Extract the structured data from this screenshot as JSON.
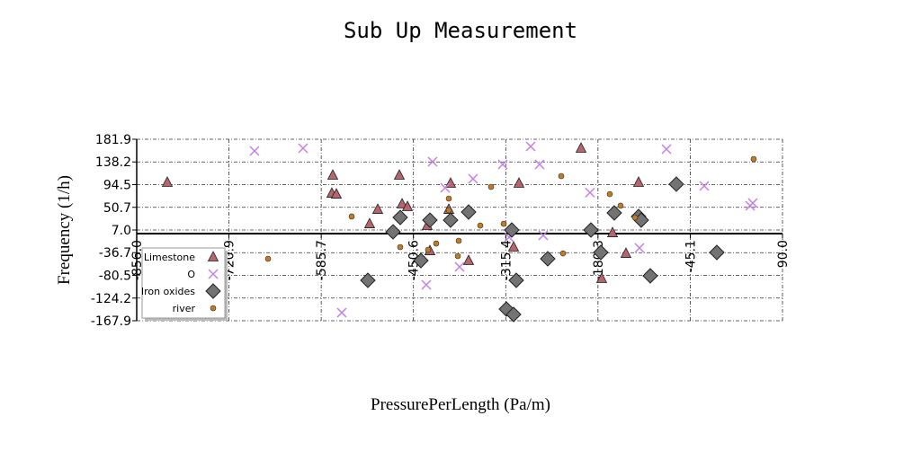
{
  "chart_data": {
    "type": "scatter",
    "title": "Sub Up Measurement",
    "xlabel": "PressurePerLength (Pa/m)",
    "ylabel": "Frequency (1/h)",
    "xlim": [
      -856.0,
      90.0
    ],
    "xticks": [
      {
        "value": -856,
        "label": "-856.0"
      },
      -720.9,
      -585.7,
      -450.6,
      -315.4,
      -180.3,
      -45.1,
      {
        "value": 90,
        "label": "90.0"
      }
    ],
    "ylim": [
      -167.9,
      181.9
    ],
    "yticks": [
      181.9,
      138.2,
      94.5,
      50.7,
      {
        "value": 7,
        "label": "7.0"
      },
      -36.7,
      -80.5,
      -124.2,
      -167.9
    ],
    "grid": true,
    "legend": "lower left",
    "series": [
      {
        "name": "Limestone",
        "color": "#b5656b",
        "marker": "triangle",
        "x": [
          -811.2,
          -568.8,
          -570.1,
          -563.5,
          -502.9,
          -514.8,
          -471.3,
          -467.3,
          -459.4,
          -430.4,
          -426.5,
          -396.2,
          -398.8,
          -369.8,
          -303.9,
          -296.0,
          -205.1,
          -174.8,
          -159.0,
          -139.3,
          -120.8
        ],
        "values": [
          98.8,
          112.6,
          77.9,
          76.2,
          46.7,
          19.0,
          112.6,
          57.2,
          52.0,
          15.6,
          -32.9,
          97.1,
          46.7,
          -51.9,
          -25.9,
          97.1,
          164.6,
          -86.5,
          1.7,
          -38.1,
          98.8
        ]
      },
      {
        "name": "O",
        "color": "#c77fe6",
        "marker": "x",
        "x": [
          -683.4,
          -612.3,
          -555.6,
          -431.8,
          -422.6,
          -404.1,
          -383.0,
          -363.3,
          -319.8,
          -310.5,
          -278.9,
          -265.8,
          -260.5,
          -192.0,
          -119.5,
          -80.0,
          -24.6,
          42.6,
          46.5
        ],
        "values": [
          159.4,
          164.6,
          -152.3,
          -98.6,
          138.6,
          88.4,
          -64.0,
          105.7,
          133.4,
          -6.8,
          168.0,
          133.4,
          -3.4,
          79.1,
          -27.6,
          162.9,
          91.9,
          53.8,
          59.0
        ]
      },
      {
        "name": "Iron oxides",
        "color": "#737373",
        "marker": "diamond",
        "x": [
          -517.4,
          -480.5,
          -470.0,
          -439.7,
          -426.5,
          -396.2,
          -369.8,
          -314.5,
          -306.6,
          -303.9,
          -300.0,
          -253.9,
          -190.6,
          -176.1,
          -156.4,
          -120.8,
          -116.9,
          -103.7,
          -65.5,
          -6.2
        ],
        "values": [
          -90.0,
          3.5,
          31.2,
          -51.9,
          26.0,
          26.0,
          41.6,
          -145.4,
          7.0,
          -155.8,
          -90.0,
          -48.4,
          7.0,
          -36.3,
          39.9,
          33.0,
          26.0,
          -81.3,
          95.4,
          -36.3
        ]
      },
      {
        "name": "river",
        "color": "#c47a22",
        "marker": "dot",
        "x": [
          -663.6,
          -541.1,
          -470.0,
          -429.1,
          -417.3,
          -398.8,
          -398.8,
          -384.3,
          -385.6,
          -352.7,
          -336.9,
          -318.4,
          -234.1,
          -231.5,
          -163.0,
          -147.2,
          -126.1,
          47.8
        ],
        "values": [
          -48.4,
          33.0,
          -25.9,
          -31.1,
          -19.0,
          67.6,
          45.1,
          -13.8,
          -43.2,
          15.6,
          90.1,
          19.0,
          110.9,
          -38.1,
          76.2,
          53.8,
          31.2,
          143.8
        ]
      }
    ]
  }
}
